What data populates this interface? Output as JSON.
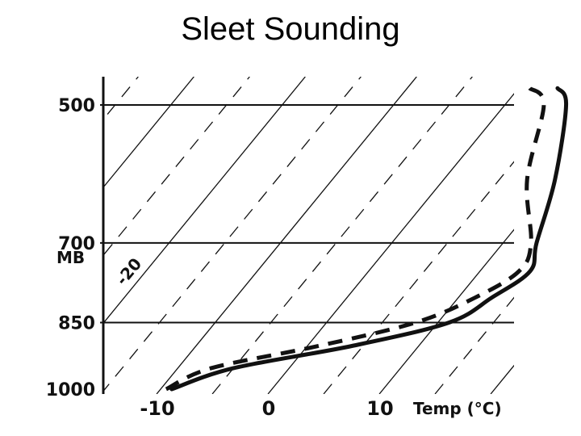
{
  "slide": {
    "title": "Sleet Sounding"
  },
  "chart_data": {
    "type": "line",
    "title": "Sleet Sounding",
    "xlabel": "Temp (°C)",
    "ylabel": "MB",
    "x_ticks": [
      {
        "value": -10,
        "label": "-10"
      },
      {
        "value": 0,
        "label": "0"
      },
      {
        "value": 10,
        "label": "10"
      }
    ],
    "y_ticks": [
      {
        "value": 500,
        "label": "500"
      },
      {
        "value": 700,
        "label": "700"
      },
      {
        "value": 850,
        "label": "850"
      },
      {
        "value": 1000,
        "label": "1000"
      }
    ],
    "isotherm_label": "-20",
    "series": [
      {
        "line_style": "solid",
        "points": [
          {
            "p": 480,
            "t": 3.5
          },
          {
            "p": 500,
            "t": 5.5
          },
          {
            "p": 600,
            "t": 10
          },
          {
            "p": 700,
            "t": 13
          },
          {
            "p": 750,
            "t": 14.5
          },
          {
            "p": 800,
            "t": 13
          },
          {
            "p": 850,
            "t": 11
          },
          {
            "p": 900,
            "t": 4
          },
          {
            "p": 950,
            "t": -5
          },
          {
            "p": 1000,
            "t": -9
          }
        ]
      },
      {
        "line_style": "dashed",
        "points": [
          {
            "p": 480,
            "t": 1
          },
          {
            "p": 500,
            "t": 3.5
          },
          {
            "p": 600,
            "t": 7.5
          },
          {
            "p": 700,
            "t": 12.5
          },
          {
            "p": 750,
            "t": 13.5
          },
          {
            "p": 800,
            "t": 11.5
          },
          {
            "p": 850,
            "t": 8
          },
          {
            "p": 900,
            "t": 1
          },
          {
            "p": 950,
            "t": -7
          },
          {
            "p": 1000,
            "t": -9.5
          }
        ]
      }
    ]
  }
}
